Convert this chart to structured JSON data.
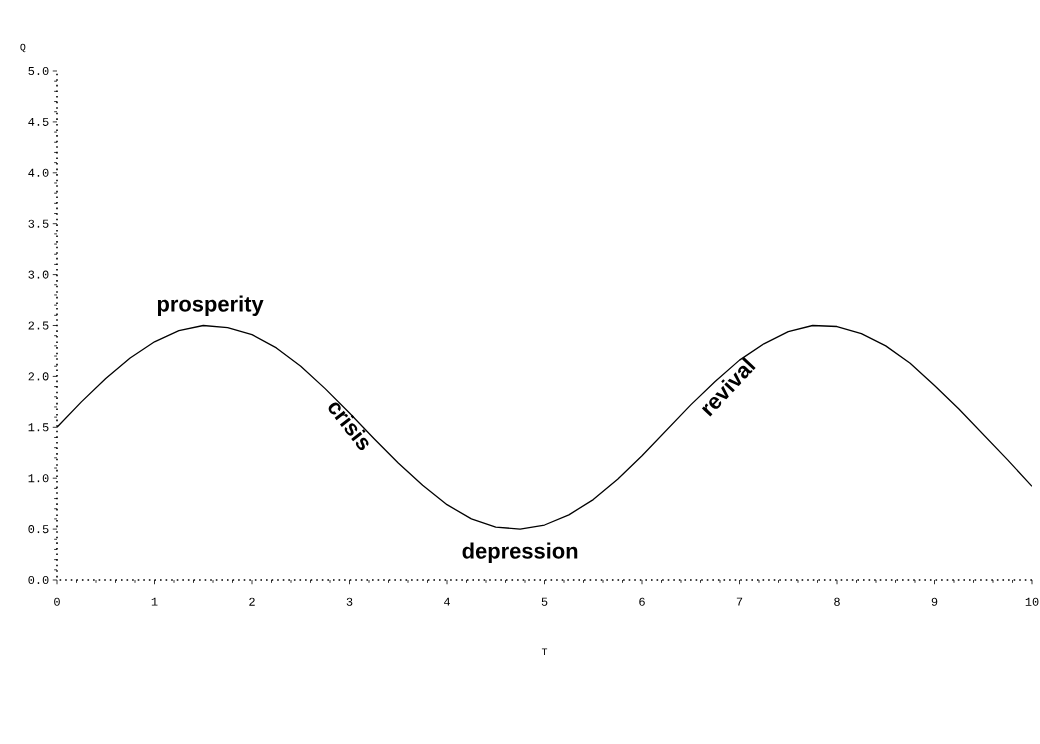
{
  "chart_data": {
    "type": "line",
    "xlabel": "T",
    "ylabel": "Q",
    "x": [
      0,
      0.25,
      0.5,
      0.75,
      1,
      1.25,
      1.5,
      1.75,
      2,
      2.25,
      2.5,
      2.75,
      3,
      3.25,
      3.5,
      3.75,
      4,
      4.25,
      4.5,
      4.75,
      5,
      5.25,
      5.5,
      5.75,
      6,
      6.25,
      6.5,
      6.75,
      7,
      7.25,
      7.5,
      7.75,
      8,
      8.25,
      8.5,
      8.75,
      9,
      9.25,
      9.5,
      9.75,
      10
    ],
    "series": [
      {
        "color": "#000000",
        "values": [
          1.5,
          1.75,
          1.98,
          2.18,
          2.34,
          2.45,
          2.5,
          2.48,
          2.41,
          2.28,
          2.1,
          1.88,
          1.64,
          1.39,
          1.15,
          0.93,
          0.74,
          0.6,
          0.52,
          0.5,
          0.54,
          0.64,
          0.79,
          0.99,
          1.22,
          1.47,
          1.72,
          1.95,
          2.16,
          2.32,
          2.44,
          2.5,
          2.49,
          2.42,
          2.3,
          2.13,
          1.91,
          1.68,
          1.43,
          1.18,
          0.92
        ]
      }
    ],
    "xlim": [
      0,
      10
    ],
    "ylim": [
      0,
      5
    ],
    "xticks": [
      0,
      1,
      2,
      3,
      4,
      5,
      6,
      7,
      8,
      9,
      10
    ],
    "yticks": [
      {
        "value": 0,
        "label": "0.0"
      },
      {
        "value": 0.5,
        "label": "0.5"
      },
      {
        "value": 1,
        "label": "1.0"
      },
      {
        "value": 1.5,
        "label": "1.5"
      },
      {
        "value": 2,
        "label": "2.0"
      },
      {
        "value": 2.5,
        "label": "2.5"
      },
      {
        "value": 3,
        "label": "3.0"
      },
      {
        "value": 3.5,
        "label": "3.5"
      },
      {
        "value": 4,
        "label": "4.0"
      },
      {
        "value": 4.5,
        "label": "4.5"
      },
      {
        "value": 5,
        "label": "5.0"
      }
    ],
    "annotations": [
      {
        "text": "prosperity",
        "x": 1.57,
        "y": 2.5
      },
      {
        "text": "crisis",
        "x": 2.75,
        "y": 1.88
      },
      {
        "text": "depression",
        "x": 4.75,
        "y": 0.5
      },
      {
        "text": "revival",
        "x": 6.5,
        "y": 1.72
      }
    ],
    "grid": false,
    "marker": "none",
    "line_style": "solid"
  }
}
